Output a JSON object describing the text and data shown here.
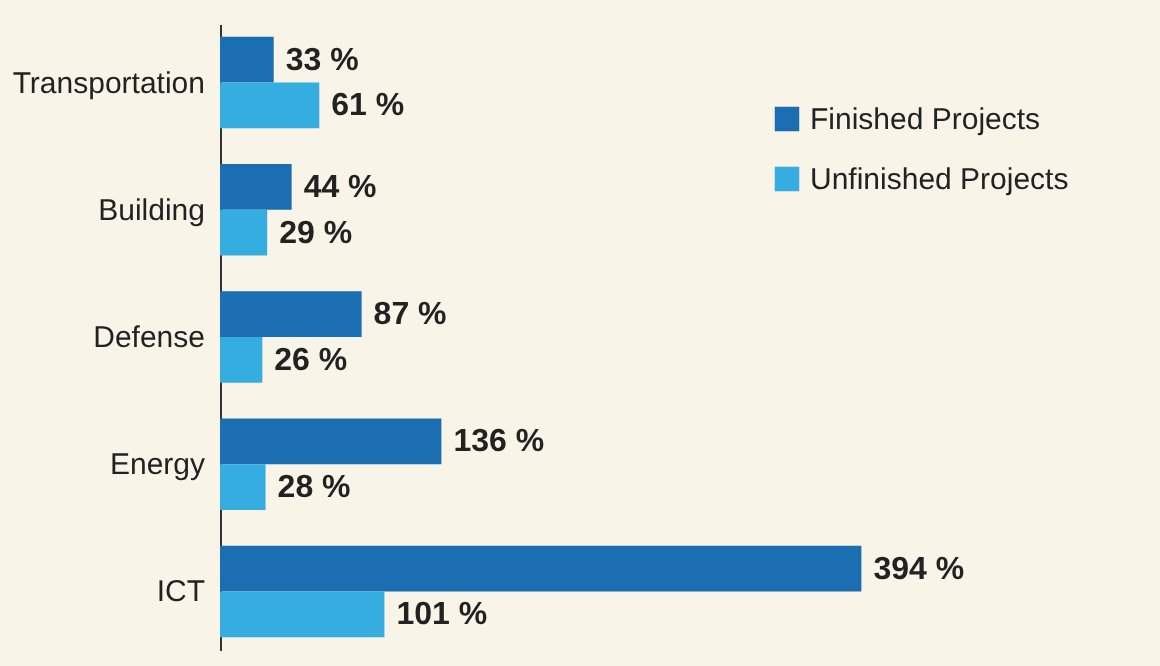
{
  "chart_data": {
    "type": "bar",
    "orientation": "horizontal",
    "categories": [
      "Transportation",
      "Building",
      "Defense",
      "Energy",
      "ICT"
    ],
    "series": [
      {
        "name": "Finished Projects",
        "color": "#1a6eb1",
        "values": [
          33,
          44,
          87,
          136,
          394
        ],
        "value_labels": [
          "33 %",
          "44 %",
          "87 %",
          "136 %",
          "394 %"
        ]
      },
      {
        "name": "Unfinished Projects",
        "color": "#36ade1",
        "values": [
          61,
          29,
          26,
          28,
          101
        ],
        "value_labels": [
          "61 %",
          "29 %",
          "26 %",
          "28 %",
          "101 %"
        ]
      }
    ],
    "legend": "top right",
    "grid": false
  }
}
